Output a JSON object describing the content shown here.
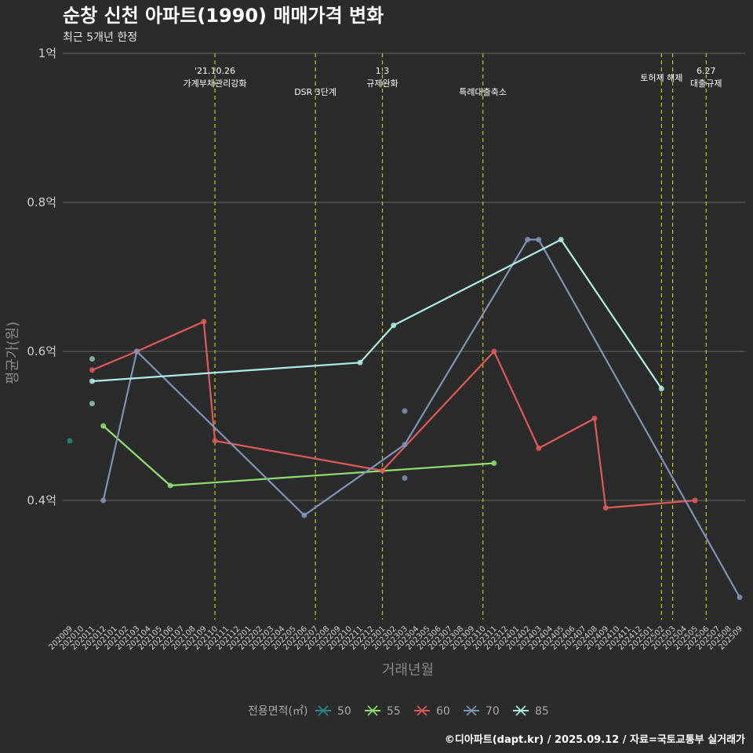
{
  "chart_data": {
    "type": "line",
    "title": "순창 신천 아파트(1990) 매매가격 변화",
    "subtitle": "최근 5개년 한정",
    "xlabel": "거래년월",
    "ylabel": "평균가(원)",
    "caption": "©디아파트(dapt.kr) / 2025.09.12 / 자료=국토교통부 실거래가",
    "legend_title": "전용면적(㎡)",
    "grid": true,
    "legend_position": "bottom",
    "y_ticks": [
      {
        "value": 0.4,
        "label": "0.4억"
      },
      {
        "value": 0.6,
        "label": "0.6억"
      },
      {
        "value": 0.8,
        "label": "0.8억"
      },
      {
        "value": 1.0,
        "label": "1억"
      }
    ],
    "ylim": [
      0.26,
      1.0
    ],
    "categories": [
      "202009",
      "202010",
      "202011",
      "202012",
      "202101",
      "202102",
      "202103",
      "202104",
      "202105",
      "202106",
      "202107",
      "202108",
      "202109",
      "202110",
      "202111",
      "202112",
      "202201",
      "202202",
      "202203",
      "202204",
      "202205",
      "202206",
      "202207",
      "202208",
      "202209",
      "202210",
      "202211",
      "202212",
      "202301",
      "202302",
      "202303",
      "202304",
      "202305",
      "202306",
      "202307",
      "202308",
      "202309",
      "202310",
      "202311",
      "202312",
      "202401",
      "202402",
      "202403",
      "202404",
      "202405",
      "202406",
      "202407",
      "202408",
      "202409",
      "202410",
      "202411",
      "202412",
      "202501",
      "202502",
      "202503",
      "202504",
      "202505",
      "202506",
      "202507",
      "202508",
      "202509"
    ],
    "annotations": [
      {
        "x": "202110",
        "lines": [
          "'21.10.26",
          "가계부채관리강화"
        ],
        "level": 1
      },
      {
        "x": "202207",
        "lines": [
          "DSR 3단계"
        ],
        "level": 2
      },
      {
        "x": "202301",
        "lines": [
          "1.3",
          "규제완화"
        ],
        "level": 1
      },
      {
        "x": "202310",
        "lines": [
          "특례대출축소"
        ],
        "level": 2
      },
      {
        "x": "202502",
        "lines": [
          "토허제 해제"
        ],
        "level": 1
      },
      {
        "x": "202503",
        "lines": [],
        "level": 1
      },
      {
        "x": "202506",
        "lines": [
          "6.27",
          "대출규제"
        ],
        "level": 1
      }
    ],
    "series": [
      {
        "name": "50",
        "color": "#2a8a8a",
        "points": [
          {
            "x": "202009",
            "y": 0.48
          }
        ]
      },
      {
        "name": "55",
        "color": "#90e070",
        "points": [
          {
            "x": "202012",
            "y": 0.5
          },
          {
            "x": "202106",
            "y": 0.42
          },
          {
            "x": "202311",
            "y": 0.45
          }
        ]
      },
      {
        "name": "60",
        "color": "#e05a5a",
        "points": [
          {
            "x": "202011",
            "y": 0.575
          },
          {
            "x": "202103",
            "y": 0.6
          },
          {
            "x": "202109",
            "y": 0.64
          },
          {
            "x": "202110",
            "y": 0.48
          },
          {
            "x": "202301",
            "y": 0.44
          },
          {
            "x": "202311",
            "y": 0.6
          },
          {
            "x": "202403",
            "y": 0.47
          },
          {
            "x": "202408",
            "y": 0.51
          },
          {
            "x": "202409",
            "y": 0.39
          },
          {
            "x": "202505",
            "y": 0.4
          }
        ]
      },
      {
        "name": "70",
        "color": "#7f93bb",
        "points": [
          {
            "x": "202012",
            "y": 0.4
          },
          {
            "x": "202103",
            "y": 0.6
          },
          {
            "x": "202206",
            "y": 0.38
          },
          {
            "x": "202303",
            "y": 0.475
          },
          {
            "x": "202402",
            "y": 0.75
          },
          {
            "x": "202403",
            "y": 0.75
          },
          {
            "x": "202509",
            "y": 0.27
          }
        ]
      },
      {
        "name": "85",
        "color": "#aeeee8",
        "points": [
          {
            "x": "202011",
            "y": 0.56
          },
          {
            "x": "202211",
            "y": 0.585
          },
          {
            "x": "202302",
            "y": 0.635
          },
          {
            "x": "202405",
            "y": 0.75
          },
          {
            "x": "202502",
            "y": 0.55
          }
        ]
      }
    ],
    "extra_points": [
      {
        "x": "202011",
        "y": 0.59,
        "color": "#8fc8b8"
      },
      {
        "x": "202011",
        "y": 0.53,
        "color": "#8fc8b8"
      },
      {
        "x": "202303",
        "y": 0.52,
        "color": "#7f93bb"
      },
      {
        "x": "202303",
        "y": 0.43,
        "color": "#7f93bb"
      }
    ]
  }
}
